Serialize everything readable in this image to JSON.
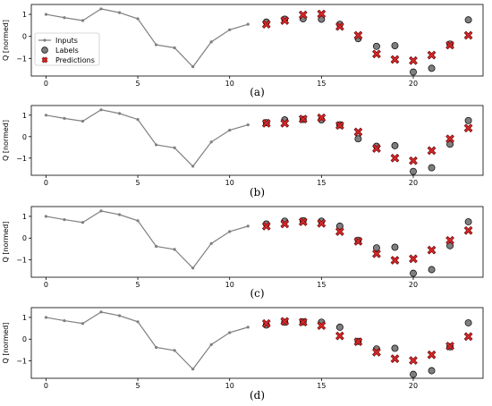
{
  "chart_data": [
    {
      "type": "line",
      "panel_label": "(a)",
      "ylabel": "Q [normed]",
      "xlim": [
        -0.8,
        23.8
      ],
      "ylim": [
        -1.8,
        1.45
      ],
      "x_ticks": [
        0,
        5,
        10,
        15,
        20
      ],
      "y_ticks": [
        -1,
        0,
        1
      ],
      "legend": {
        "position": "left",
        "entries": [
          "Inputs",
          "Labels",
          "Predictions"
        ]
      },
      "series": [
        {
          "name": "Inputs",
          "x": [
            0,
            1,
            2,
            3,
            4,
            5,
            6,
            7,
            8,
            9,
            10,
            11
          ],
          "values": [
            1.0,
            0.85,
            0.72,
            1.25,
            1.08,
            0.8,
            -0.38,
            -0.52,
            -1.38,
            -0.25,
            0.3,
            0.55
          ]
        },
        {
          "name": "Labels",
          "x": [
            12,
            13,
            14,
            15,
            16,
            17,
            18,
            19,
            20,
            21,
            22,
            23
          ],
          "values": [
            0.65,
            0.78,
            0.8,
            0.78,
            0.55,
            -0.1,
            -0.45,
            -0.42,
            -1.62,
            -1.45,
            -0.35,
            0.75
          ]
        },
        {
          "name": "Predictions",
          "x": [
            12,
            13,
            14,
            15,
            16,
            17,
            18,
            19,
            20,
            21,
            22,
            23
          ],
          "values": [
            0.55,
            0.72,
            0.98,
            1.02,
            0.45,
            0.05,
            -0.8,
            -1.05,
            -1.1,
            -0.85,
            -0.4,
            0.05
          ]
        }
      ]
    },
    {
      "type": "line",
      "panel_label": "(b)",
      "ylabel": "Q [normed]",
      "xlim": [
        -0.8,
        23.8
      ],
      "ylim": [
        -1.8,
        1.45
      ],
      "x_ticks": [
        0,
        5,
        10,
        15,
        20
      ],
      "y_ticks": [
        -1,
        0,
        1
      ],
      "series": [
        {
          "name": "Inputs",
          "x": [
            0,
            1,
            2,
            3,
            4,
            5,
            6,
            7,
            8,
            9,
            10,
            11
          ],
          "values": [
            1.0,
            0.85,
            0.72,
            1.25,
            1.08,
            0.8,
            -0.38,
            -0.52,
            -1.38,
            -0.25,
            0.3,
            0.55
          ]
        },
        {
          "name": "Labels",
          "x": [
            12,
            13,
            14,
            15,
            16,
            17,
            18,
            19,
            20,
            21,
            22,
            23
          ],
          "values": [
            0.65,
            0.78,
            0.8,
            0.78,
            0.55,
            -0.1,
            -0.45,
            -0.42,
            -1.62,
            -1.45,
            -0.35,
            0.75
          ]
        },
        {
          "name": "Predictions",
          "x": [
            12,
            13,
            14,
            15,
            16,
            17,
            18,
            19,
            20,
            21,
            22,
            23
          ],
          "values": [
            0.62,
            0.62,
            0.82,
            0.88,
            0.52,
            0.22,
            -0.55,
            -1.0,
            -1.12,
            -0.65,
            -0.1,
            0.4
          ]
        }
      ]
    },
    {
      "type": "line",
      "panel_label": "(c)",
      "ylabel": "Q [normed]",
      "xlim": [
        -0.8,
        23.8
      ],
      "ylim": [
        -1.8,
        1.45
      ],
      "x_ticks": [
        0,
        5,
        10,
        15,
        20
      ],
      "y_ticks": [
        -1,
        0,
        1
      ],
      "series": [
        {
          "name": "Inputs",
          "x": [
            0,
            1,
            2,
            3,
            4,
            5,
            6,
            7,
            8,
            9,
            10,
            11
          ],
          "values": [
            1.0,
            0.85,
            0.72,
            1.25,
            1.08,
            0.8,
            -0.38,
            -0.52,
            -1.38,
            -0.25,
            0.3,
            0.55
          ]
        },
        {
          "name": "Labels",
          "x": [
            12,
            13,
            14,
            15,
            16,
            17,
            18,
            19,
            20,
            21,
            22,
            23
          ],
          "values": [
            0.65,
            0.78,
            0.8,
            0.78,
            0.55,
            -0.1,
            -0.45,
            -0.42,
            -1.62,
            -1.45,
            -0.35,
            0.75
          ]
        },
        {
          "name": "Predictions",
          "x": [
            12,
            13,
            14,
            15,
            16,
            17,
            18,
            19,
            20,
            21,
            22,
            23
          ],
          "values": [
            0.55,
            0.65,
            0.75,
            0.68,
            0.3,
            -0.15,
            -0.72,
            -1.02,
            -0.95,
            -0.55,
            -0.1,
            0.35
          ]
        }
      ]
    },
    {
      "type": "line",
      "panel_label": "(d)",
      "ylabel": "Q [normed]",
      "xlim": [
        -0.8,
        23.8
      ],
      "ylim": [
        -1.8,
        1.45
      ],
      "x_ticks": [
        0,
        5,
        10,
        15,
        20
      ],
      "y_ticks": [
        -1,
        0,
        1
      ],
      "series": [
        {
          "name": "Inputs",
          "x": [
            0,
            1,
            2,
            3,
            4,
            5,
            6,
            7,
            8,
            9,
            10,
            11
          ],
          "values": [
            1.0,
            0.85,
            0.72,
            1.25,
            1.08,
            0.8,
            -0.38,
            -0.52,
            -1.38,
            -0.25,
            0.3,
            0.55
          ]
        },
        {
          "name": "Labels",
          "x": [
            12,
            13,
            14,
            15,
            16,
            17,
            18,
            19,
            20,
            21,
            22,
            23
          ],
          "values": [
            0.65,
            0.78,
            0.8,
            0.78,
            0.55,
            -0.1,
            -0.45,
            -0.42,
            -1.62,
            -1.45,
            -0.35,
            0.75
          ]
        },
        {
          "name": "Predictions",
          "x": [
            12,
            13,
            14,
            15,
            16,
            17,
            18,
            19,
            20,
            21,
            22,
            23
          ],
          "values": [
            0.72,
            0.82,
            0.78,
            0.62,
            0.15,
            -0.12,
            -0.6,
            -0.9,
            -0.98,
            -0.72,
            -0.32,
            0.12
          ]
        }
      ]
    }
  ],
  "colors": {
    "inputs_line": "#7f7f7f",
    "labels_fill": "#7f7f7f",
    "labels_edge": "#000000",
    "predictions": "#d62728",
    "axis": "#000000"
  }
}
